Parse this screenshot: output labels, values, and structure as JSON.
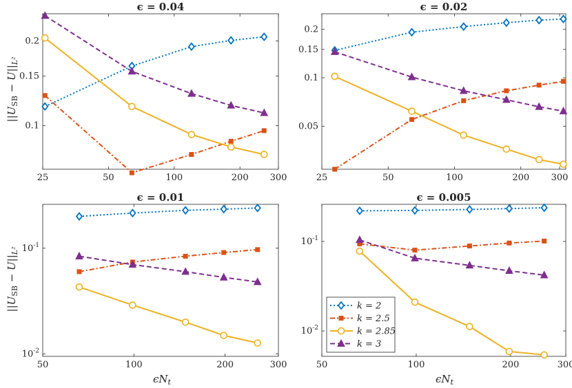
{
  "figure": {
    "ylabel": "||U_SB − U||_{L²}",
    "xlabel": "ϵN_t"
  },
  "legend": {
    "placement": "inside-bottom-left-of-bottom-right-panel",
    "entries": [
      {
        "label": "k = 2",
        "color": "#0072BD",
        "marker": "diamond",
        "dash": "dotted"
      },
      {
        "label": "k = 2.5",
        "color": "#D95319",
        "marker": "square",
        "dash": "dashdot"
      },
      {
        "label": "k = 2.85",
        "color": "#EDB120",
        "marker": "circle",
        "dash": "solid"
      },
      {
        "label": "k = 3",
        "color": "#7E2F8E",
        "marker": "triangle",
        "dash": "dashed"
      }
    ]
  },
  "chart_data": [
    {
      "type": "line",
      "title": "ϵ = 0.04",
      "xscale": "log",
      "yscale": "log",
      "xlim": [
        25,
        300
      ],
      "ylim": [
        0.07,
        0.25
      ],
      "xticks": [
        25,
        50,
        100,
        200,
        300
      ],
      "yticks": [
        0.1,
        0.15,
        0.2
      ],
      "grid": false,
      "series": [
        {
          "name": "k = 2",
          "x": [
            25.6,
            64,
            120,
            182,
            258
          ],
          "y": [
            0.117,
            0.163,
            0.191,
            0.201,
            0.207
          ]
        },
        {
          "name": "k = 2.5",
          "x": [
            25.6,
            64,
            120,
            182,
            258
          ],
          "y": [
            0.128,
            0.068,
            0.079,
            0.088,
            0.096
          ]
        },
        {
          "name": "k = 2.85",
          "x": [
            25.6,
            64,
            120,
            182,
            258
          ],
          "y": [
            0.205,
            0.117,
            0.093,
            0.084,
            0.079
          ]
        },
        {
          "name": "k = 3",
          "x": [
            25.6,
            64,
            120,
            182,
            258
          ],
          "y": [
            0.246,
            0.156,
            0.13,
            0.118,
            0.111
          ]
        }
      ]
    },
    {
      "type": "line",
      "title": "ϵ = 0.02",
      "xscale": "log",
      "yscale": "log",
      "xlim": [
        25,
        320
      ],
      "ylim": [
        0.027,
        0.25
      ],
      "xticks": [
        25,
        50,
        100,
        200,
        300
      ],
      "yticks": [
        0.05,
        0.1,
        0.15,
        0.2
      ],
      "grid": false,
      "series": [
        {
          "name": "k = 2",
          "x": [
            28.6,
            64,
            110,
            172,
            242,
            312
          ],
          "y": [
            0.148,
            0.192,
            0.208,
            0.22,
            0.228,
            0.232
          ]
        },
        {
          "name": "k = 2.5",
          "x": [
            28.6,
            64,
            110,
            172,
            242,
            312
          ],
          "y": [
            0.027,
            0.055,
            0.072,
            0.083,
            0.09,
            0.095
          ]
        },
        {
          "name": "k = 2.85",
          "x": [
            28.6,
            64,
            110,
            172,
            242,
            312
          ],
          "y": [
            0.102,
            0.062,
            0.044,
            0.036,
            0.031,
            0.029
          ]
        },
        {
          "name": "k = 3",
          "x": [
            28.6,
            64,
            110,
            172,
            242,
            312
          ],
          "y": [
            0.145,
            0.101,
            0.083,
            0.073,
            0.066,
            0.062
          ]
        }
      ]
    },
    {
      "type": "line",
      "title": "ϵ = 0.01",
      "xscale": "log",
      "yscale": "log",
      "xlim": [
        50,
        300
      ],
      "ylim": [
        0.0095,
        0.26
      ],
      "xticks": [
        50,
        100,
        200,
        300
      ],
      "yticks": [
        0.01,
        0.1
      ],
      "ytick_labels": [
        "10^-2",
        "10^-1"
      ],
      "grid": false,
      "series": [
        {
          "name": "k = 2",
          "x": [
            66,
            99,
            148,
            198,
            256
          ],
          "y": [
            0.2,
            0.215,
            0.228,
            0.234,
            0.24
          ]
        },
        {
          "name": "k = 2.5",
          "x": [
            66,
            99,
            148,
            198,
            256
          ],
          "y": [
            0.06,
            0.074,
            0.084,
            0.091,
            0.097
          ]
        },
        {
          "name": "k = 2.85",
          "x": [
            66,
            99,
            148,
            198,
            256
          ],
          "y": [
            0.043,
            0.029,
            0.02,
            0.015,
            0.0127
          ]
        },
        {
          "name": "k = 3",
          "x": [
            66,
            99,
            148,
            198,
            256
          ],
          "y": [
            0.084,
            0.07,
            0.06,
            0.053,
            0.048
          ]
        }
      ]
    },
    {
      "type": "line",
      "title": "ϵ = 0.005",
      "xscale": "log",
      "yscale": "log",
      "xlim": [
        50,
        300
      ],
      "ylim": [
        0.0052,
        0.26
      ],
      "xticks": [
        50,
        100,
        200,
        300
      ],
      "yticks": [
        0.01,
        0.1
      ],
      "ytick_labels": [
        "10^-2",
        "10^-1"
      ],
      "grid": false,
      "series": [
        {
          "name": "k = 2",
          "x": [
            66,
            99,
            148,
            198,
            256
          ],
          "y": [
            0.22,
            0.222,
            0.228,
            0.233,
            0.238
          ]
        },
        {
          "name": "k = 2.5",
          "x": [
            66,
            99,
            148,
            198,
            256
          ],
          "y": [
            0.094,
            0.08,
            0.089,
            0.096,
            0.101
          ]
        },
        {
          "name": "k = 2.85",
          "x": [
            66,
            99,
            148,
            198,
            256
          ],
          "y": [
            0.078,
            0.021,
            0.0112,
            0.0059,
            0.0054
          ]
        },
        {
          "name": "k = 3",
          "x": [
            66,
            99,
            148,
            198,
            256
          ],
          "y": [
            0.104,
            0.065,
            0.054,
            0.047,
            0.042
          ]
        }
      ]
    }
  ]
}
